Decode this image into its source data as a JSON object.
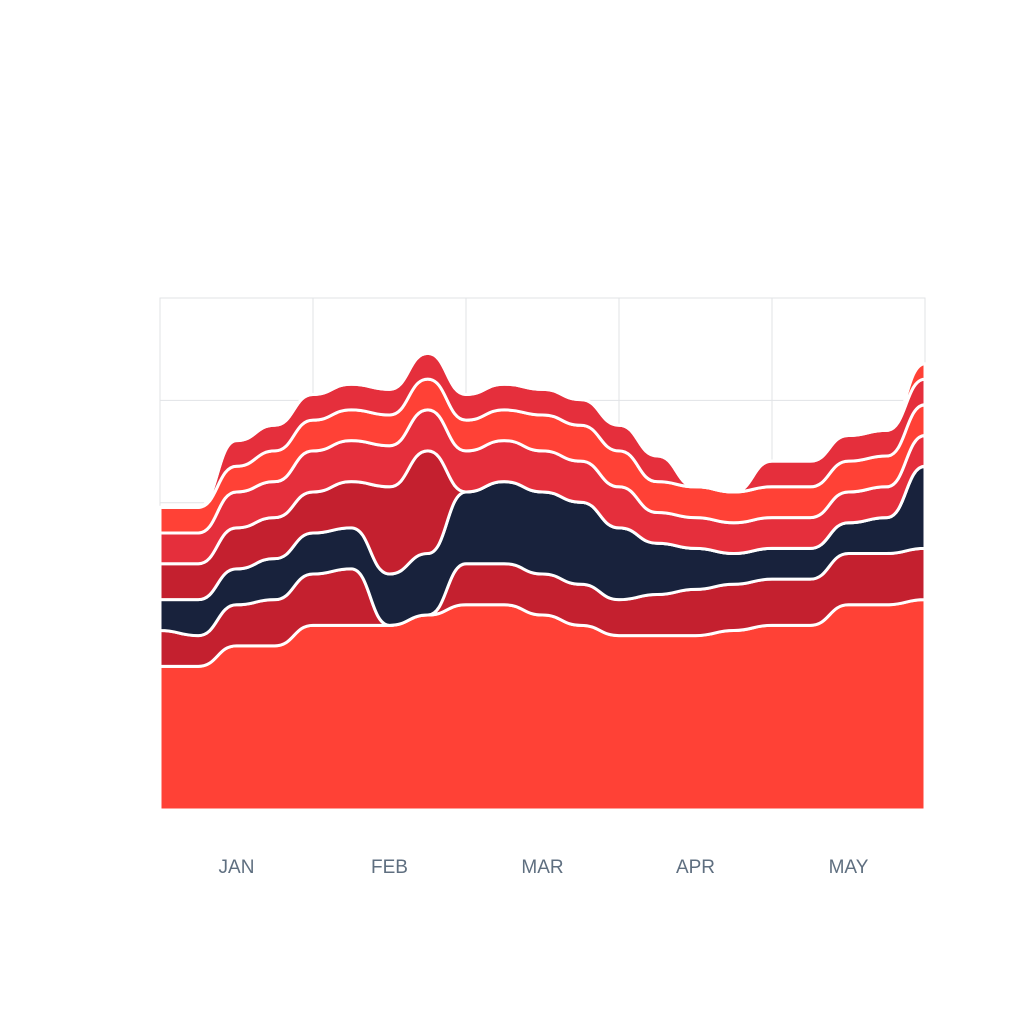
{
  "chart_data": {
    "type": "area",
    "stacking": "stream",
    "x": [
      0,
      0.25,
      0.5,
      0.75,
      1,
      1.25,
      1.5,
      1.75,
      2,
      2.25,
      2.5,
      2.75,
      3,
      3.25,
      3.5,
      3.75,
      4,
      4.25,
      4.5,
      4.75,
      5
    ],
    "categories": [
      "JAN",
      "FEB",
      "MAR",
      "APR",
      "MAY"
    ],
    "ylim": [
      0,
      100
    ],
    "grid": true,
    "legend": "none",
    "series": [
      {
        "color": "#ff4136",
        "values": [
          28,
          28,
          32,
          32,
          36,
          36,
          36,
          38,
          40,
          40,
          38,
          36,
          34,
          34,
          34,
          35,
          36,
          36,
          40,
          40,
          41
        ]
      },
      {
        "color": "#c4202f",
        "values": [
          7,
          6,
          8,
          9,
          10,
          11,
          0,
          0,
          8,
          8,
          8,
          8,
          7,
          8,
          9,
          9,
          9,
          9,
          10,
          10,
          10
        ]
      },
      {
        "color": "#18223c",
        "values": [
          6,
          7,
          7,
          8,
          8,
          8,
          10,
          12,
          14,
          16,
          16,
          16,
          14,
          10,
          8,
          6,
          6,
          6,
          6,
          7,
          16
        ]
      },
      {
        "color": "#c4202f",
        "values": [
          7,
          7,
          8,
          8,
          8,
          9,
          17,
          20,
          0,
          0,
          0,
          0,
          0,
          0,
          0,
          0,
          0,
          0,
          0,
          0,
          0
        ]
      },
      {
        "color": "#e52f3c",
        "values": [
          6,
          6,
          7,
          7,
          8,
          8,
          8,
          8,
          8,
          8,
          8,
          8,
          8,
          6,
          6,
          6,
          6,
          6,
          6,
          6,
          6
        ]
      },
      {
        "color": "#ff4136",
        "values": [
          5,
          5,
          5,
          6,
          6,
          6,
          6,
          6,
          6,
          6,
          7,
          7,
          7,
          6,
          6,
          6,
          6,
          6,
          6,
          6,
          6
        ]
      },
      {
        "color": "#e52f3c",
        "values": [
          0,
          0,
          5,
          5,
          5,
          5,
          5,
          5,
          5,
          5,
          5,
          5,
          5,
          5,
          0,
          0,
          5,
          5,
          5,
          5,
          5
        ]
      },
      {
        "color": "#ff4136",
        "values": [
          0,
          0,
          0,
          0,
          0,
          0,
          0,
          0,
          0,
          0,
          0,
          0,
          0,
          0,
          0,
          0,
          0,
          0,
          0,
          0,
          3
        ]
      }
    ]
  }
}
